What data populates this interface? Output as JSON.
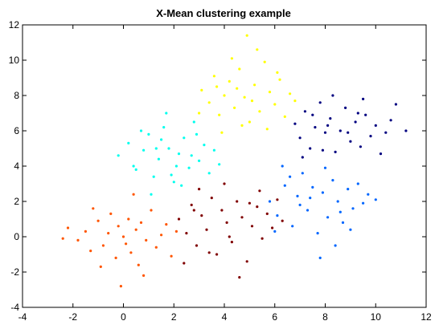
{
  "chart_data": {
    "type": "scatter",
    "title": "X-Mean clustering example",
    "xlabel": "",
    "ylabel": "",
    "xlim": [
      -4,
      12
    ],
    "ylim": [
      -4,
      12
    ],
    "xticks": [
      "-4",
      "-2",
      "0",
      "2",
      "4",
      "6",
      "8",
      "10",
      "12"
    ],
    "yticks": [
      "-4",
      "-2",
      "0",
      "2",
      "4",
      "6",
      "8",
      "10",
      "12"
    ],
    "grid": false,
    "legend": "none",
    "series": [
      {
        "color": "#ff5500",
        "points": [
          [
            -2.2,
            0.5
          ],
          [
            -1.8,
            -0.2
          ],
          [
            -1.5,
            0.3
          ],
          [
            -1.3,
            -0.8
          ],
          [
            -1.0,
            0.9
          ],
          [
            -0.8,
            -0.5
          ],
          [
            -0.6,
            0.2
          ],
          [
            -0.5,
            1.3
          ],
          [
            -0.3,
            -1.2
          ],
          [
            -0.2,
            0.6
          ],
          [
            0.0,
            0.0
          ],
          [
            0.1,
            -0.4
          ],
          [
            0.2,
            1.0
          ],
          [
            0.3,
            -0.9
          ],
          [
            0.5,
            0.4
          ],
          [
            0.6,
            -1.6
          ],
          [
            0.7,
            0.8
          ],
          [
            0.9,
            -0.2
          ],
          [
            1.1,
            1.5
          ],
          [
            1.3,
            -0.6
          ],
          [
            1.5,
            0.1
          ],
          [
            1.7,
            0.7
          ],
          [
            1.9,
            -1.1
          ],
          [
            2.1,
            0.3
          ],
          [
            -1.2,
            1.6
          ],
          [
            -0.9,
            -1.7
          ],
          [
            0.4,
            2.4
          ],
          [
            -0.1,
            -2.8
          ],
          [
            0.8,
            -2.2
          ],
          [
            -2.4,
            -0.1
          ]
        ]
      },
      {
        "color": "#800000",
        "points": [
          [
            2.2,
            1.0
          ],
          [
            2.5,
            0.2
          ],
          [
            2.7,
            1.8
          ],
          [
            2.9,
            -0.5
          ],
          [
            3.1,
            1.2
          ],
          [
            3.3,
            0.4
          ],
          [
            3.5,
            2.2
          ],
          [
            3.7,
            -1.0
          ],
          [
            3.9,
            1.5
          ],
          [
            4.1,
            0.8
          ],
          [
            4.3,
            -0.3
          ],
          [
            4.5,
            2.0
          ],
          [
            4.7,
            1.1
          ],
          [
            4.9,
            -1.4
          ],
          [
            5.1,
            0.6
          ],
          [
            5.3,
            1.7
          ],
          [
            5.5,
            -0.1
          ],
          [
            5.7,
            1.3
          ],
          [
            5.9,
            0.5
          ],
          [
            6.1,
            2.1
          ],
          [
            2.4,
            -1.5
          ],
          [
            3.0,
            2.7
          ],
          [
            4.0,
            3.0
          ],
          [
            4.6,
            -2.3
          ],
          [
            5.4,
            2.6
          ],
          [
            3.4,
            -0.9
          ],
          [
            4.2,
            0.0
          ],
          [
            2.8,
            1.5
          ],
          [
            5.0,
            1.9
          ],
          [
            6.3,
            0.9
          ]
        ]
      },
      {
        "color": "#00ffee",
        "points": [
          [
            -0.2,
            4.6
          ],
          [
            0.2,
            5.3
          ],
          [
            0.5,
            3.8
          ],
          [
            0.8,
            4.9
          ],
          [
            1.0,
            5.8
          ],
          [
            1.2,
            3.4
          ],
          [
            1.4,
            4.4
          ],
          [
            1.6,
            6.2
          ],
          [
            1.8,
            5.0
          ],
          [
            2.0,
            3.1
          ],
          [
            2.2,
            4.7
          ],
          [
            2.4,
            5.6
          ],
          [
            2.6,
            3.9
          ],
          [
            2.8,
            6.5
          ],
          [
            3.0,
            4.3
          ],
          [
            3.2,
            5.2
          ],
          [
            3.4,
            3.6
          ],
          [
            3.6,
            4.9
          ],
          [
            1.1,
            2.4
          ],
          [
            1.7,
            7.0
          ],
          [
            2.3,
            2.9
          ],
          [
            0.4,
            4.0
          ],
          [
            1.5,
            5.5
          ],
          [
            2.9,
            5.8
          ],
          [
            3.8,
            4.1
          ],
          [
            0.7,
            6.0
          ],
          [
            2.1,
            4.0
          ],
          [
            1.9,
            3.5
          ],
          [
            2.7,
            4.6
          ],
          [
            1.3,
            5.0
          ]
        ]
      },
      {
        "color": "#ffff00",
        "points": [
          [
            3.1,
            8.3
          ],
          [
            3.4,
            7.6
          ],
          [
            3.6,
            9.1
          ],
          [
            3.8,
            6.9
          ],
          [
            4.0,
            8.0
          ],
          [
            4.2,
            8.8
          ],
          [
            4.4,
            7.3
          ],
          [
            4.6,
            9.5
          ],
          [
            4.8,
            7.9
          ],
          [
            5.0,
            6.5
          ],
          [
            5.2,
            8.6
          ],
          [
            5.4,
            7.1
          ],
          [
            5.6,
            9.9
          ],
          [
            5.8,
            8.2
          ],
          [
            6.0,
            7.5
          ],
          [
            6.2,
            8.9
          ],
          [
            6.4,
            6.8
          ],
          [
            6.6,
            8.1
          ],
          [
            3.9,
            5.9
          ],
          [
            4.9,
            11.4
          ],
          [
            5.3,
            10.6
          ],
          [
            6.8,
            7.7
          ],
          [
            3.0,
            7.0
          ],
          [
            4.5,
            8.4
          ],
          [
            5.7,
            6.1
          ],
          [
            6.1,
            9.3
          ],
          [
            4.3,
            10.1
          ],
          [
            5.1,
            7.7
          ],
          [
            3.7,
            8.5
          ],
          [
            4.7,
            6.3
          ]
        ]
      },
      {
        "color": "#0066ff",
        "points": [
          [
            5.8,
            2.0
          ],
          [
            6.1,
            1.2
          ],
          [
            6.4,
            2.9
          ],
          [
            6.7,
            0.6
          ],
          [
            6.9,
            2.3
          ],
          [
            7.1,
            3.6
          ],
          [
            7.3,
            1.5
          ],
          [
            7.5,
            2.8
          ],
          [
            7.7,
            0.2
          ],
          [
            7.9,
            2.5
          ],
          [
            8.1,
            1.1
          ],
          [
            8.3,
            3.2
          ],
          [
            8.5,
            2.0
          ],
          [
            8.7,
            0.8
          ],
          [
            8.9,
            2.7
          ],
          [
            9.1,
            1.6
          ],
          [
            9.3,
            3.0
          ],
          [
            9.5,
            1.9
          ],
          [
            9.7,
            2.4
          ],
          [
            6.3,
            4.0
          ],
          [
            7.8,
            -1.2
          ],
          [
            8.4,
            -0.5
          ],
          [
            10.0,
            2.1
          ],
          [
            6.0,
            0.3
          ],
          [
            7.0,
            1.8
          ],
          [
            8.0,
            3.9
          ],
          [
            9.0,
            0.4
          ],
          [
            7.4,
            2.2
          ],
          [
            8.6,
            1.4
          ],
          [
            6.6,
            3.4
          ]
        ]
      },
      {
        "color": "#000080",
        "points": [
          [
            6.8,
            6.4
          ],
          [
            7.0,
            5.6
          ],
          [
            7.2,
            7.1
          ],
          [
            7.4,
            5.0
          ],
          [
            7.6,
            6.2
          ],
          [
            7.8,
            7.6
          ],
          [
            8.0,
            5.9
          ],
          [
            8.2,
            6.7
          ],
          [
            8.4,
            4.8
          ],
          [
            8.6,
            6.0
          ],
          [
            8.8,
            7.3
          ],
          [
            9.0,
            5.4
          ],
          [
            9.2,
            6.5
          ],
          [
            9.4,
            5.1
          ],
          [
            9.6,
            6.9
          ],
          [
            9.8,
            5.7
          ],
          [
            10.0,
            6.3
          ],
          [
            10.2,
            4.7
          ],
          [
            10.4,
            5.9
          ],
          [
            11.2,
            6.0
          ],
          [
            10.8,
            7.5
          ],
          [
            7.1,
            4.5
          ],
          [
            8.3,
            8.0
          ],
          [
            9.5,
            7.8
          ],
          [
            7.9,
            4.9
          ],
          [
            8.9,
            5.9
          ],
          [
            9.3,
            7.0
          ],
          [
            8.1,
            6.3
          ],
          [
            10.6,
            6.6
          ],
          [
            7.5,
            6.9
          ]
        ]
      }
    ]
  }
}
